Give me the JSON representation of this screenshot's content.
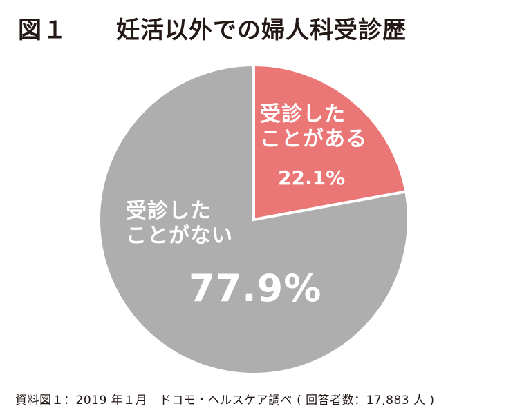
{
  "header": {
    "figure_label": "図１",
    "title": "妊活以外での婦人科受診歴"
  },
  "chart_data": {
    "type": "pie",
    "title": "妊活以外での婦人科受診歴",
    "start_angle_deg": 0,
    "direction": "clockwise",
    "slices": [
      {
        "label_line1": "受診した",
        "label_line2": "ことがある",
        "value": 22.1,
        "value_text": "22.1%",
        "color": "#ea7675"
      },
      {
        "label_line1": "受診した",
        "label_line2": "ことがない",
        "value": 77.9,
        "value_text": "77.9%",
        "color": "#aeaeae"
      }
    ]
  },
  "colors": {
    "label_text": "#ffffff",
    "slice_border": "#ffffff",
    "text": "#231815"
  },
  "footer": {
    "source": "資料図１：2019 年１月　ドコモ・ヘルスケア調べ ( 回答者数：17,883 人 )"
  }
}
